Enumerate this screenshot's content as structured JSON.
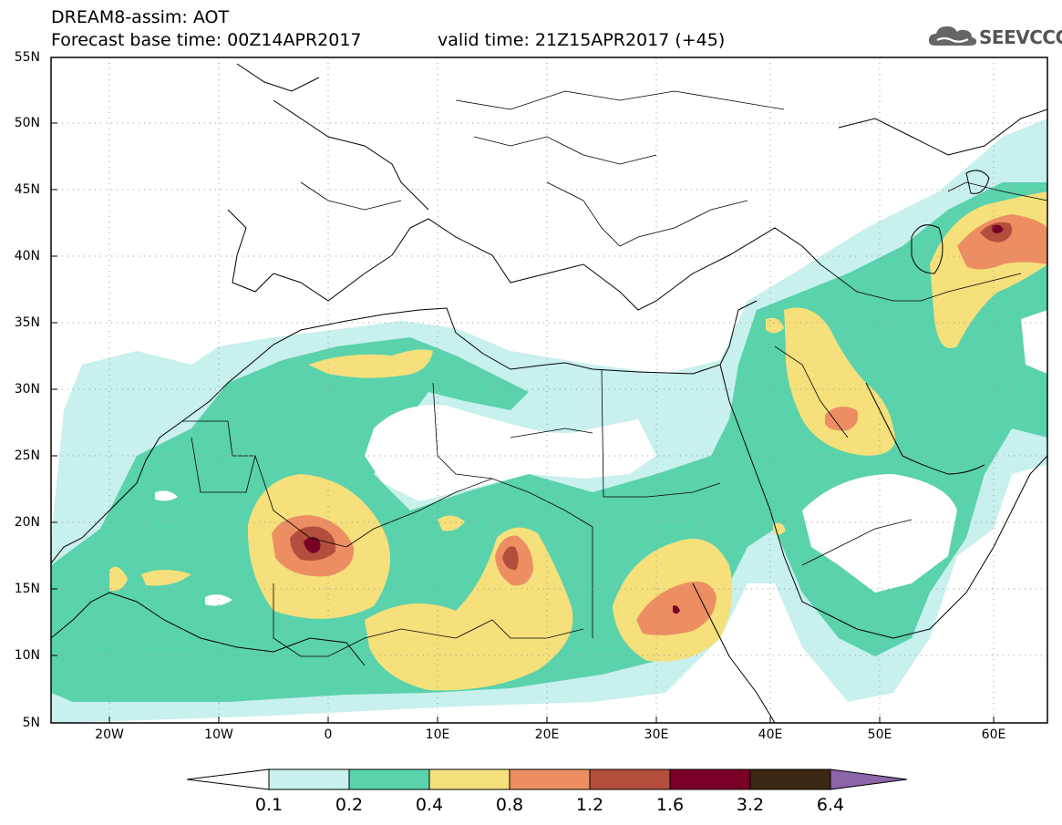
{
  "header": {
    "line1": "DREAM8-assim: AOT",
    "line2": "Forecast base time: 00Z14APR2017",
    "valid": "valid time: 21Z15APR2017 (+45)"
  },
  "logo": {
    "text": "SEEVCCC",
    "icon": "cloud-icon"
  },
  "map": {
    "lon_range": [
      -25,
      65
    ],
    "lat_range": [
      5,
      55
    ],
    "lat_labels": [
      "55N",
      "50N",
      "45N",
      "40N",
      "35N",
      "30N",
      "25N",
      "20N",
      "15N",
      "10N",
      "5N"
    ],
    "lon_labels": [
      "20W",
      "10W",
      "0",
      "10E",
      "20E",
      "30E",
      "40E",
      "50E",
      "60E"
    ],
    "grid": "dotted",
    "variable": "AOT"
  },
  "colorbar": {
    "labels": [
      "0.1",
      "0.2",
      "0.4",
      "0.8",
      "1.2",
      "1.6",
      "3.2",
      "6.4"
    ],
    "colors": [
      "#ffffff",
      "#c8f0ec",
      "#5ad2ac",
      "#f5e07c",
      "#ec8e62",
      "#b44e3c",
      "#7a0027",
      "#3c2814",
      "#8c64a8"
    ]
  }
}
